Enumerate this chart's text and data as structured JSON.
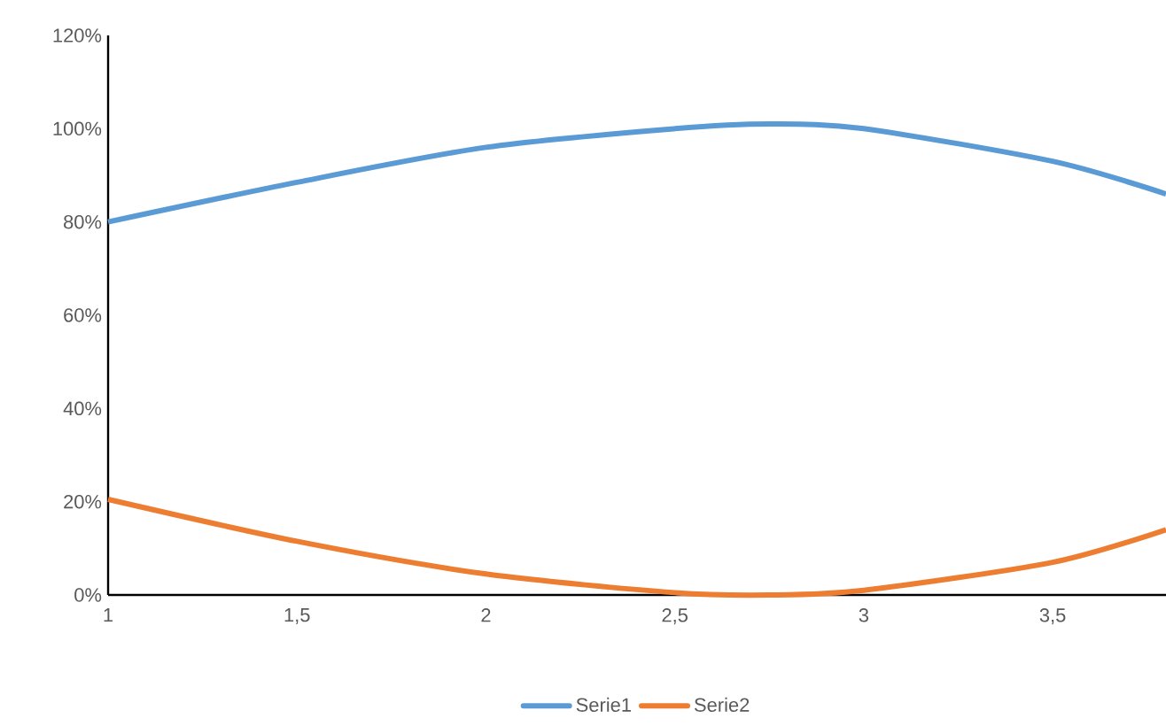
{
  "chart_data": {
    "type": "line",
    "series": [
      {
        "name": "Serie1",
        "color": "#5b9bd5",
        "x": [
          1,
          1.5,
          2,
          2.5,
          2.75,
          3,
          3.5,
          3.8
        ],
        "values": [
          80,
          88.5,
          96,
          100,
          101,
          100,
          93,
          86
        ]
      },
      {
        "name": "Serie2",
        "color": "#ed7d31",
        "x": [
          1,
          1.5,
          2,
          2.5,
          2.75,
          3,
          3.5,
          3.8
        ],
        "values": [
          20.5,
          11.5,
          4.5,
          0.5,
          0,
          1,
          7,
          14
        ]
      }
    ],
    "xlim": [
      1,
      3.8
    ],
    "xticks": [
      1,
      {
        "value": 1.5,
        "label": "1,5"
      },
      2,
      {
        "value": 2.5,
        "label": "2,5"
      },
      3,
      {
        "value": 3.5,
        "label": "3,5"
      }
    ],
    "ylim": [
      0,
      120
    ],
    "yticks": [
      {
        "value": 0,
        "label": "0%"
      },
      {
        "value": 20,
        "label": "20%"
      },
      {
        "value": 40,
        "label": "40%"
      },
      {
        "value": 60,
        "label": "60%"
      },
      {
        "value": 80,
        "label": "80%"
      },
      {
        "value": 100,
        "label": "100%"
      },
      {
        "value": 120,
        "label": "120%"
      }
    ],
    "legend": "bottom",
    "marker": "none",
    "line_style": "solid",
    "grid": false
  }
}
